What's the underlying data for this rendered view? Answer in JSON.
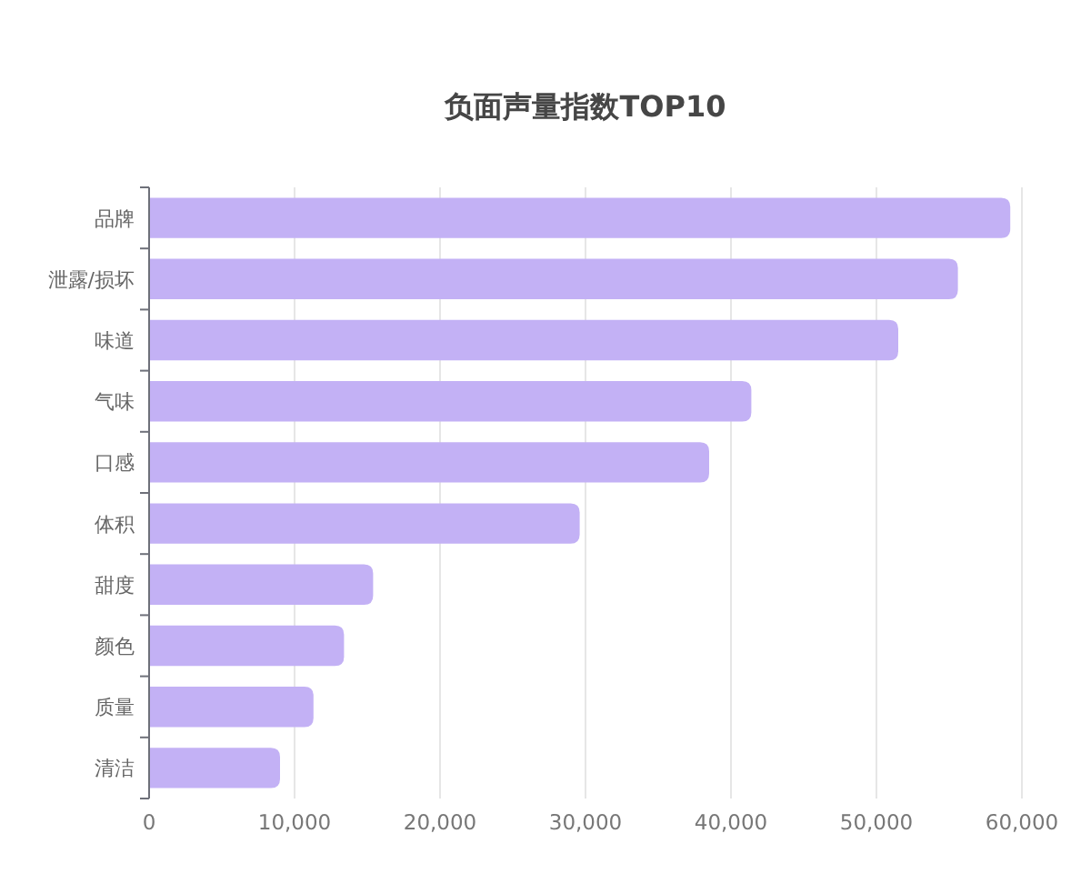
{
  "chart_data": {
    "type": "bar",
    "orientation": "horizontal",
    "title": "负面声量指数TOP10",
    "categories": [
      "品牌",
      "泄露/损坏",
      "味道",
      "气味",
      "口感",
      "体积",
      "甜度",
      "颜色",
      "质量",
      "清洁"
    ],
    "values": [
      59200,
      55600,
      51500,
      41400,
      38500,
      29600,
      15400,
      13400,
      11300,
      9000
    ],
    "color": "#c3b1f5",
    "xlim": [
      0,
      60000
    ],
    "xticks": [
      0,
      {
        "value": 10000,
        "label": "10,000"
      },
      {
        "value": 20000,
        "label": "20,000"
      },
      {
        "value": 30000,
        "label": "30,000"
      },
      {
        "value": 40000,
        "label": "40,000"
      },
      {
        "value": 50000,
        "label": "50,000"
      },
      {
        "value": 60000,
        "label": "60,000"
      }
    ],
    "grid": "x"
  }
}
